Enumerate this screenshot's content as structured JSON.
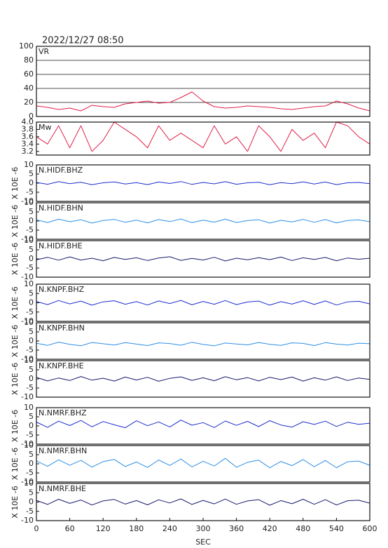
{
  "timestamp": "2022/12/27 08:50",
  "chart_data": [
    {
      "type": "line",
      "title": "VR",
      "color": "#e0204a",
      "grid": true,
      "x": [
        0,
        20,
        40,
        60,
        80,
        100,
        120,
        140,
        160,
        180,
        200,
        220,
        240,
        260,
        280,
        300,
        320,
        340,
        360,
        380,
        400,
        420,
        440,
        460,
        480,
        500,
        520,
        540,
        560,
        580,
        600
      ],
      "values": [
        15,
        13,
        10,
        12,
        8,
        16,
        14,
        13,
        18,
        20,
        22,
        19,
        20,
        27,
        35,
        22,
        14,
        12,
        13,
        15,
        14,
        13,
        11,
        10,
        12,
        14,
        15,
        22,
        18,
        12,
        8
      ],
      "xlim": [
        0,
        600
      ],
      "ylim": [
        0,
        100
      ],
      "yticks": [
        0,
        20,
        40,
        60,
        80,
        100
      ]
    },
    {
      "type": "line",
      "title": "Mw",
      "color": "#e0204a",
      "grid": false,
      "x": [
        0,
        20,
        40,
        60,
        80,
        100,
        120,
        140,
        160,
        180,
        200,
        220,
        240,
        260,
        280,
        300,
        320,
        340,
        360,
        380,
        400,
        420,
        440,
        460,
        480,
        500,
        520,
        540,
        560,
        580,
        600
      ],
      "values": [
        3.6,
        3.4,
        3.9,
        3.3,
        3.9,
        3.2,
        3.5,
        4.0,
        3.8,
        3.6,
        3.3,
        3.9,
        3.5,
        3.7,
        3.5,
        3.3,
        3.9,
        3.4,
        3.6,
        3.2,
        3.9,
        3.6,
        3.2,
        3.8,
        3.5,
        3.7,
        3.3,
        4.0,
        3.9,
        3.6,
        3.4
      ],
      "xlim": [
        0,
        600
      ],
      "ylim": [
        3.1,
        4.0
      ],
      "yticks": [
        3.2,
        3.4,
        3.6,
        3.8,
        {
          "value": 4,
          "label": "4.0"
        }
      ]
    },
    {
      "type": "line",
      "title": "N.HIDF.BHZ",
      "ylabel": "X 10E -6",
      "color": "#1c2fd0",
      "x": [
        0,
        20,
        40,
        60,
        80,
        100,
        120,
        140,
        160,
        180,
        200,
        220,
        240,
        260,
        280,
        300,
        320,
        340,
        360,
        380,
        400,
        420,
        440,
        460,
        480,
        500,
        520,
        540,
        560,
        580,
        600
      ],
      "values": [
        0.4,
        -0.6,
        0.8,
        -0.3,
        0.5,
        -0.9,
        0.2,
        0.7,
        -0.5,
        0.3,
        -0.8,
        0.6,
        -0.2,
        0.9,
        -0.7,
        0.4,
        -0.4,
        0.8,
        -0.6,
        0.2,
        0.5,
        -0.9,
        0.3,
        -0.3,
        0.7,
        -0.5,
        0.6,
        -0.8,
        0.2,
        0.4,
        -0.3
      ],
      "xlim": [
        0,
        600
      ],
      "ylim": [
        -10,
        10
      ],
      "yticks": [
        -10,
        -5,
        0,
        5,
        10
      ]
    },
    {
      "type": "line",
      "title": "N.HIDF.BHN",
      "ylabel": "X 10E -6",
      "color": "#2d8fe6",
      "x": [
        0,
        20,
        40,
        60,
        80,
        100,
        120,
        140,
        160,
        180,
        200,
        220,
        240,
        260,
        280,
        300,
        320,
        340,
        360,
        380,
        400,
        420,
        440,
        460,
        480,
        500,
        520,
        540,
        560,
        580,
        600
      ],
      "values": [
        0.6,
        -0.8,
        1.0,
        -0.4,
        0.7,
        -1.1,
        0.3,
        0.9,
        -0.7,
        0.5,
        -1.0,
        0.8,
        -0.3,
        1.1,
        -0.9,
        0.5,
        -0.6,
        1.0,
        -0.8,
        0.3,
        0.7,
        -1.1,
        0.4,
        -0.5,
        0.9,
        -0.7,
        0.8,
        -1.0,
        0.3,
        0.6,
        -0.4
      ],
      "xlim": [
        0,
        600
      ],
      "ylim": [
        -10,
        10
      ],
      "yticks": [
        -10,
        -5,
        0,
        5,
        10
      ]
    },
    {
      "type": "line",
      "title": "N.HIDF.BHE",
      "ylabel": "X 10E -6",
      "color": "#1a1a6e",
      "x": [
        0,
        20,
        40,
        60,
        80,
        100,
        120,
        140,
        160,
        180,
        200,
        220,
        240,
        260,
        280,
        300,
        320,
        340,
        360,
        380,
        400,
        420,
        440,
        460,
        480,
        500,
        520,
        540,
        560,
        580,
        600
      ],
      "values": [
        -0.5,
        0.9,
        -0.7,
        1.1,
        -0.6,
        0.4,
        -1.0,
        0.8,
        -0.3,
        0.6,
        -0.9,
        0.5,
        1.2,
        -0.8,
        0.3,
        -0.6,
        0.9,
        -1.1,
        0.4,
        -0.5,
        0.7,
        -0.4,
        1.0,
        -0.9,
        0.6,
        -0.3,
        0.8,
        -1.0,
        0.5,
        -0.2,
        0.4
      ],
      "xlim": [
        0,
        600
      ],
      "ylim": [
        -10,
        10
      ],
      "yticks": [
        -10,
        -5,
        0,
        5,
        10
      ]
    },
    {
      "type": "line",
      "title": "N.KNPF.BHZ",
      "ylabel": "X 10E -6",
      "color": "#1c2fd0",
      "x": [
        0,
        20,
        40,
        60,
        80,
        100,
        120,
        140,
        160,
        180,
        200,
        220,
        240,
        260,
        280,
        300,
        320,
        340,
        360,
        380,
        400,
        420,
        440,
        460,
        480,
        500,
        520,
        540,
        560,
        580,
        600
      ],
      "values": [
        0.7,
        -1.0,
        1.2,
        -0.6,
        0.9,
        -1.3,
        0.5,
        1.1,
        -0.8,
        0.6,
        -1.2,
        1.0,
        -0.4,
        1.3,
        -1.1,
        0.7,
        -0.8,
        1.2,
        -1.0,
        0.4,
        0.9,
        -1.3,
        0.6,
        -0.7,
        1.1,
        -0.9,
        1.0,
        -1.2,
        0.5,
        0.8,
        -0.6
      ],
      "xlim": [
        0,
        600
      ],
      "ylim": [
        -10,
        10
      ],
      "yticks": [
        -10,
        -5,
        0,
        5,
        10
      ]
    },
    {
      "type": "line",
      "title": "N.KNPF.BHN",
      "ylabel": "X 10E -6",
      "color": "#2d8fe6",
      "x": [
        0,
        20,
        40,
        60,
        80,
        100,
        120,
        140,
        160,
        180,
        200,
        220,
        240,
        260,
        280,
        300,
        320,
        340,
        360,
        380,
        400,
        420,
        440,
        460,
        480,
        500,
        520,
        540,
        560,
        580,
        600
      ],
      "values": [
        -1.2,
        -2.4,
        -0.6,
        -1.8,
        -2.6,
        -0.8,
        -1.5,
        -2.2,
        -0.9,
        -1.7,
        -2.5,
        -1.0,
        -1.4,
        -2.3,
        -0.7,
        -1.9,
        -2.6,
        -1.1,
        -1.6,
        -2.1,
        -0.8,
        -1.8,
        -2.4,
        -1.0,
        -1.3,
        -2.5,
        -0.9,
        -1.7,
        -2.2,
        -1.2,
        -1.5
      ],
      "xlim": [
        0,
        600
      ],
      "ylim": [
        -10,
        10
      ],
      "yticks": [
        -10,
        -5,
        0,
        5,
        10
      ]
    },
    {
      "type": "line",
      "title": "N.KNPF.BHE",
      "ylabel": "X 10E -6",
      "color": "#1a1a6e",
      "x": [
        0,
        20,
        40,
        60,
        80,
        100,
        120,
        140,
        160,
        180,
        200,
        220,
        240,
        260,
        280,
        300,
        320,
        340,
        360,
        380,
        400,
        420,
        440,
        460,
        480,
        500,
        520,
        540,
        560,
        580,
        600
      ],
      "values": [
        0.8,
        -1.1,
        0.5,
        -0.9,
        1.3,
        -0.7,
        0.4,
        -1.2,
        1.0,
        -0.6,
        0.9,
        -1.3,
        0.3,
        1.1,
        -0.8,
        0.6,
        -1.0,
        1.2,
        -0.5,
        0.7,
        -1.1,
        0.9,
        -0.4,
        1.0,
        -1.2,
        0.6,
        -0.7,
        1.1,
        -0.9,
        0.5,
        -0.3
      ],
      "xlim": [
        0,
        600
      ],
      "ylim": [
        -10,
        10
      ],
      "yticks": [
        -10,
        -5,
        0,
        5,
        10
      ]
    },
    {
      "type": "line",
      "title": "N.NMRF.BHZ",
      "ylabel": "X 10E -6",
      "color": "#1c2fd0",
      "x": [
        0,
        20,
        40,
        60,
        80,
        100,
        120,
        140,
        160,
        180,
        200,
        220,
        240,
        260,
        280,
        300,
        320,
        340,
        360,
        380,
        400,
        420,
        440,
        460,
        480,
        500,
        520,
        540,
        560,
        580,
        600
      ],
      "values": [
        2.1,
        -0.8,
        2.6,
        0.2,
        3.0,
        -0.5,
        2.4,
        0.6,
        -1.0,
        2.8,
        0.1,
        2.2,
        -0.6,
        3.2,
        0.4,
        1.8,
        -0.9,
        2.7,
        0.3,
        2.5,
        -0.4,
        2.9,
        0.5,
        -0.7,
        2.3,
        0.8,
        2.6,
        -0.3,
        2.0,
        0.9,
        1.5
      ],
      "xlim": [
        0,
        600
      ],
      "ylim": [
        -10,
        10
      ],
      "yticks": [
        -10,
        -5,
        0,
        5,
        10
      ]
    },
    {
      "type": "line",
      "title": "N.NMRF.BHN",
      "ylabel": "X 10E -6",
      "color": "#2d8fe6",
      "x": [
        0,
        20,
        40,
        60,
        80,
        100,
        120,
        140,
        160,
        180,
        200,
        220,
        240,
        260,
        280,
        300,
        320,
        340,
        360,
        380,
        400,
        420,
        440,
        460,
        480,
        500,
        520,
        540,
        560,
        580,
        600
      ],
      "values": [
        1.6,
        -1.4,
        2.2,
        -0.8,
        1.9,
        -1.8,
        1.2,
        2.4,
        -1.5,
        1.0,
        -2.0,
        2.1,
        -0.9,
        2.6,
        -1.7,
        1.4,
        -1.2,
        3.0,
        -1.9,
        0.8,
        2.0,
        -2.2,
        1.3,
        -1.0,
        2.3,
        -1.6,
        1.8,
        -2.1,
        1.1,
        1.5,
        -0.8
      ],
      "xlim": [
        0,
        600
      ],
      "ylim": [
        -10,
        10
      ],
      "yticks": [
        -10,
        -5,
        0,
        5,
        10
      ]
    },
    {
      "type": "line",
      "title": "N.NMRF.BHE",
      "ylabel": "X 10E -6",
      "color": "#1a1a6e",
      "x": [
        0,
        20,
        40,
        60,
        80,
        100,
        120,
        140,
        160,
        180,
        200,
        220,
        240,
        260,
        280,
        300,
        320,
        340,
        360,
        380,
        400,
        420,
        440,
        460,
        480,
        500,
        520,
        540,
        560,
        580,
        600
      ],
      "values": [
        0.9,
        -1.3,
        1.5,
        -0.7,
        1.1,
        -1.6,
        0.6,
        1.4,
        -1.1,
        0.8,
        -1.5,
        1.2,
        -0.5,
        1.7,
        -1.3,
        0.9,
        -1.0,
        1.6,
        -1.2,
        0.6,
        1.3,
        -1.7,
        0.8,
        -0.9,
        1.5,
        -1.2,
        1.3,
        -1.6,
        0.7,
        1.0,
        -0.6
      ],
      "xlim": [
        0,
        600
      ],
      "ylim": [
        -10,
        10
      ],
      "yticks": [
        -10,
        -5,
        0,
        5,
        10
      ],
      "xticks": [
        0,
        60,
        120,
        180,
        240,
        300,
        360,
        420,
        480,
        540,
        600
      ],
      "xlabel": "SEC"
    }
  ]
}
